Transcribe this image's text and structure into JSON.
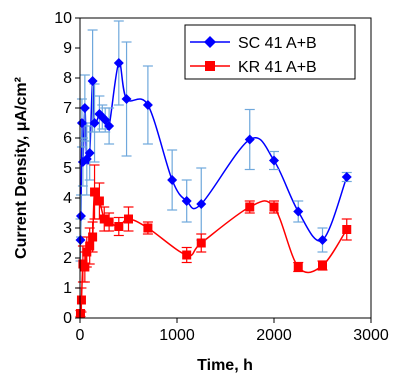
{
  "chart_data": {
    "type": "scatter",
    "title": "",
    "xlabel": "Time, h",
    "ylabel": "Current Density, μA/cm²",
    "xlim": [
      0,
      3000
    ],
    "ylim": [
      0,
      10
    ],
    "x_ticks": [
      "0",
      "1000",
      "2000",
      "3000"
    ],
    "y_ticks": [
      "0",
      "1",
      "2",
      "3",
      "4",
      "5",
      "6",
      "7",
      "8",
      "9",
      "10"
    ],
    "grid": false,
    "legend_position": "top-right",
    "series": [
      {
        "name": "SC 41 A+B",
        "color": "#0000ff",
        "marker": "diamond",
        "x": [
          5,
          10,
          20,
          30,
          50,
          70,
          100,
          130,
          150,
          200,
          230,
          260,
          300,
          400,
          480,
          700,
          950,
          1100,
          1250,
          1750,
          2000,
          2250,
          2500,
          2750
        ],
        "y": [
          2.6,
          3.4,
          6.5,
          5.2,
          7.0,
          5.3,
          5.5,
          7.9,
          6.5,
          6.8,
          6.7,
          6.6,
          6.4,
          8.5,
          7.3,
          7.1,
          4.6,
          3.9,
          3.8,
          5.95,
          5.25,
          3.55,
          2.6,
          4.7
        ],
        "err": [
          0.7,
          0.7,
          0.8,
          0.8,
          1.1,
          1.2,
          0.9,
          1.7,
          1.3,
          0.6,
          0.4,
          0.4,
          0.6,
          1.4,
          1.9,
          1.3,
          1.0,
          0.7,
          1.2,
          1.0,
          0.3,
          0.35,
          0.4,
          0.15
        ]
      },
      {
        "name": "KR 41 A+B",
        "color": "#ff0000",
        "marker": "square",
        "x": [
          5,
          15,
          30,
          50,
          70,
          100,
          130,
          150,
          200,
          250,
          300,
          400,
          500,
          700,
          1100,
          1250,
          1750,
          2000,
          2250,
          2500,
          2750
        ],
        "y": [
          0.15,
          0.6,
          1.8,
          1.7,
          2.2,
          2.4,
          2.7,
          4.2,
          3.9,
          3.3,
          3.2,
          3.05,
          3.3,
          3.0,
          2.1,
          2.5,
          3.7,
          3.7,
          1.7,
          1.75,
          2.95
        ]
      }
    ]
  }
}
